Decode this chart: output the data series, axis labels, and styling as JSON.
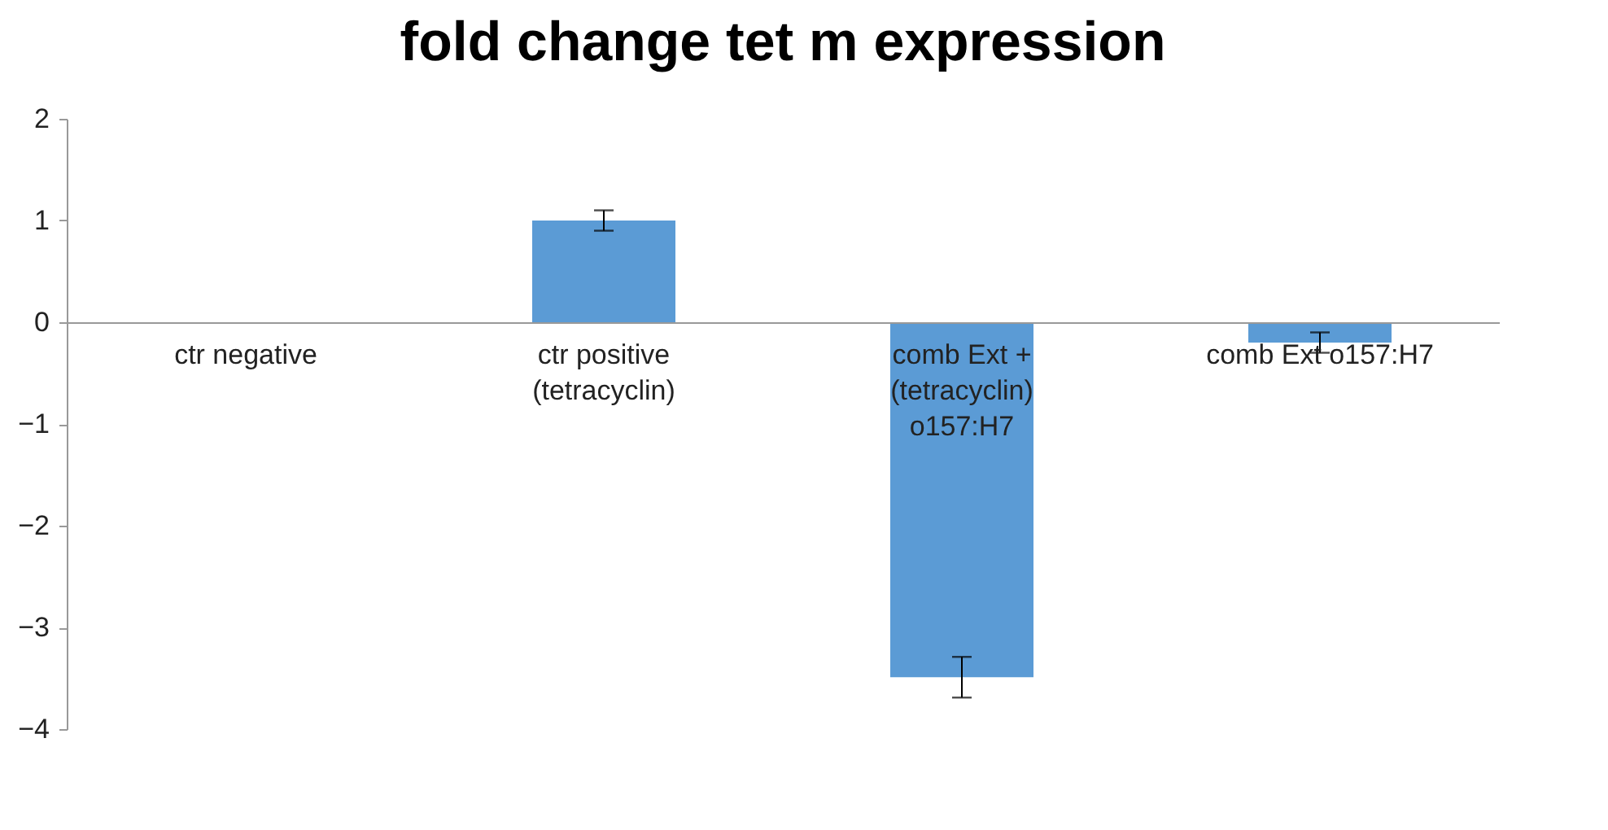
{
  "chart_data": {
    "type": "bar",
    "title": "fold change tet m expression",
    "categories": [
      "ctr negative",
      "ctr positive (tetracyclin)",
      "comb Ext + (tetracyclin) o157:H7",
      "comb Ext o157:H7"
    ],
    "values": [
      0,
      1,
      -3.49,
      -0.2
    ],
    "errors": [
      null,
      0.1,
      0.2,
      0.1
    ],
    "color": "#5b9bd5",
    "ylim": [
      -4,
      2
    ],
    "yticks": [
      -4,
      -3,
      -2,
      -1,
      0,
      1,
      2
    ],
    "grid": false
  }
}
